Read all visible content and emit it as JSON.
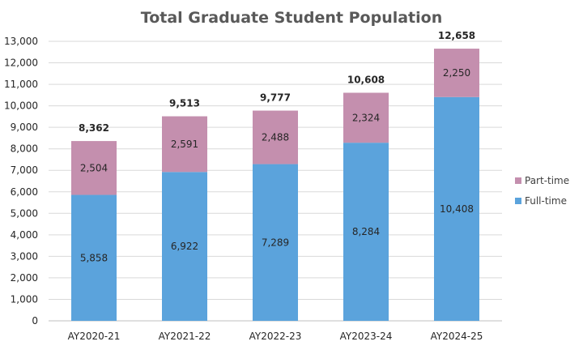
{
  "chart_data": {
    "type": "bar",
    "stacked": true,
    "title": "Total Graduate Student Population",
    "xlabel": "",
    "ylabel": "",
    "categories": [
      "AY2020-21",
      "AY2021-22",
      "AY2022-23",
      "AY2023-24",
      "AY2024-25"
    ],
    "series": [
      {
        "name": "Full-time",
        "color": "#5ba3dc",
        "values": [
          5858,
          6922,
          7289,
          8284,
          10408
        ]
      },
      {
        "name": "Part-time",
        "color": "#c48fae",
        "values": [
          2504,
          2591,
          2488,
          2324,
          2250
        ]
      }
    ],
    "totals": [
      8362,
      9513,
      9777,
      10608,
      12658
    ],
    "ylim": [
      0,
      13000
    ],
    "ytick_step": 1000,
    "grid": true,
    "legend_position": "right"
  }
}
